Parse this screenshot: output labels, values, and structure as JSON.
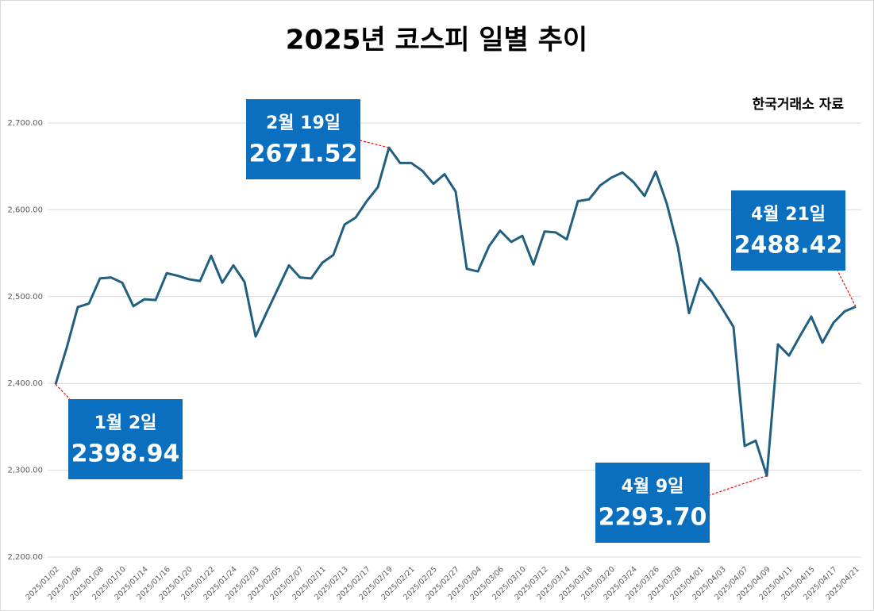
{
  "chart_data": {
    "type": "line",
    "title": "2025년 코스피 일별 추이",
    "source": "한국거래소 자료",
    "categories": [
      "2025/01/02",
      null,
      "2025/01/06",
      null,
      "2025/01/08",
      null,
      "2025/01/10",
      null,
      "2025/01/14",
      null,
      "2025/01/16",
      null,
      "2025/01/20",
      null,
      "2025/01/22",
      null,
      "2025/01/24",
      null,
      "2025/02/03",
      null,
      "2025/02/05",
      null,
      "2025/02/07",
      null,
      "2025/02/11",
      null,
      "2025/02/13",
      null,
      "2025/02/17",
      null,
      "2025/02/19",
      null,
      "2025/02/21",
      null,
      "2025/02/25",
      null,
      "2025/02/27",
      null,
      "2025/03/04",
      null,
      "2025/03/06",
      null,
      "2025/03/10",
      null,
      "2025/03/12",
      null,
      "2025/03/14",
      null,
      "2025/03/18",
      null,
      "2025/03/20",
      null,
      "2025/03/24",
      null,
      "2025/03/26",
      null,
      "2025/03/28",
      null,
      "2025/04/01",
      null,
      "2025/04/03",
      null,
      "2025/04/07",
      null,
      "2025/04/09",
      null,
      "2025/04/11",
      null,
      "2025/04/15",
      null,
      "2025/04/17",
      null,
      "2025/04/21"
    ],
    "values": [
      2398.94,
      2441,
      2488,
      2492,
      2521,
      2522,
      2516,
      2489,
      2497,
      2496,
      2527,
      2524,
      2520,
      2518,
      2547,
      2516,
      2536,
      2517,
      2454,
      2482,
      2509,
      2536,
      2522,
      2521,
      2539,
      2548,
      2583,
      2591,
      2610,
      2626,
      2671.52,
      2654,
      2654,
      2645,
      2630,
      2641,
      2621,
      2532,
      2529,
      2558,
      2576,
      2563,
      2570,
      2537,
      2575,
      2574,
      2566,
      2610,
      2612,
      2628,
      2637,
      2643,
      2632,
      2616,
      2644,
      2607,
      2557,
      2481,
      2521,
      2506,
      2486,
      2465,
      2328,
      2334,
      2293.7,
      2445,
      2432,
      2455,
      2477,
      2447,
      2470,
      2483,
      2488.42
    ],
    "color": "#215f80",
    "ylim": [
      2200,
      2700
    ],
    "yticks": [
      {
        "value": 2200,
        "label": "2,200.00"
      },
      {
        "value": 2300,
        "label": "2,300.00"
      },
      {
        "value": 2400,
        "label": "2,400.00"
      },
      {
        "value": 2500,
        "label": "2,500.00"
      },
      {
        "value": 2600,
        "label": "2,600.00"
      },
      {
        "value": 2700,
        "label": "2,700.00"
      }
    ],
    "grid": true,
    "annotations": [
      {
        "x": "2025/01/02",
        "text": "1월 2일",
        "value_label": "2398.94"
      },
      {
        "x": "2025/02/19",
        "text": "2월 19일",
        "value_label": "2671.52"
      },
      {
        "x": "2025/04/09",
        "text": "4월 9일",
        "value_label": "2293.70"
      },
      {
        "x": "2025/04/21",
        "text": "4월 21일",
        "value_label": "2488.42"
      }
    ],
    "annotation_color": "#0b6fc0"
  }
}
